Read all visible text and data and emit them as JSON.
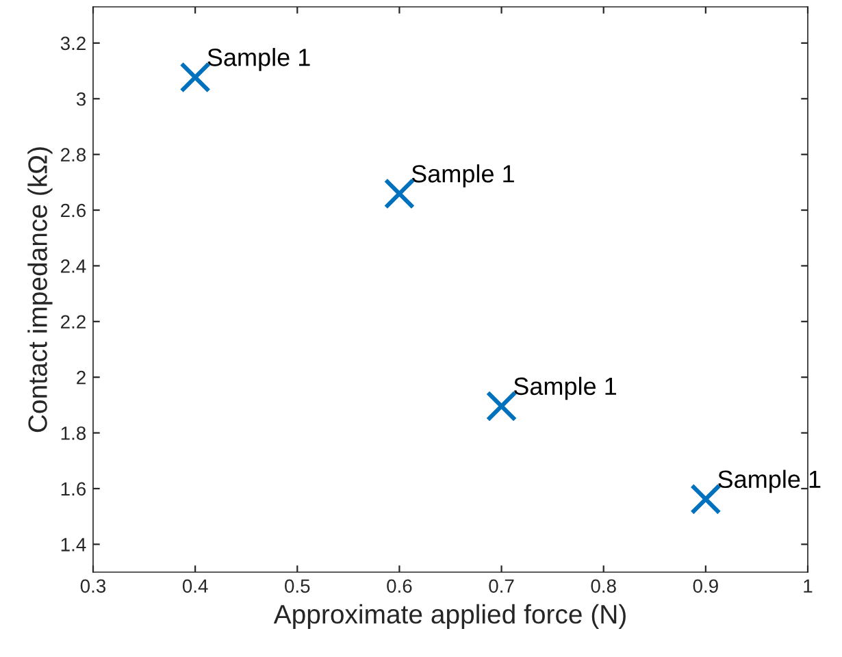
{
  "chart_data": {
    "type": "scatter",
    "xlabel": "Approximate applied force (N)",
    "ylabel": "Contact impedance (kΩ)",
    "x": [
      0.4,
      0.6,
      0.7,
      0.9
    ],
    "series": [
      {
        "color": "#0072bd",
        "values": [
          3.077,
          2.659,
          1.896,
          1.562
        ]
      }
    ],
    "marker": "cross",
    "grid": false,
    "legend": false,
    "xlim": [
      0.3,
      1
    ],
    "xticks": [
      0.3,
      0.4,
      0.5,
      0.6,
      0.7,
      0.8,
      0.9,
      1
    ],
    "ylim": [
      1.3,
      3.33
    ],
    "yticks": [
      1.4,
      1.6,
      1.8,
      2,
      2.2,
      2.4,
      2.6,
      2.8,
      3,
      3.2
    ],
    "annotations": [
      {
        "text": "Sample 1",
        "x": 0.4,
        "y": 3.077
      },
      {
        "text": "Sample 1",
        "x": 0.6,
        "y": 2.659
      },
      {
        "text": "Sample 1",
        "x": 0.7,
        "y": 1.896
      },
      {
        "text": "Sample 1",
        "x": 0.9,
        "y": 1.562
      }
    ]
  }
}
